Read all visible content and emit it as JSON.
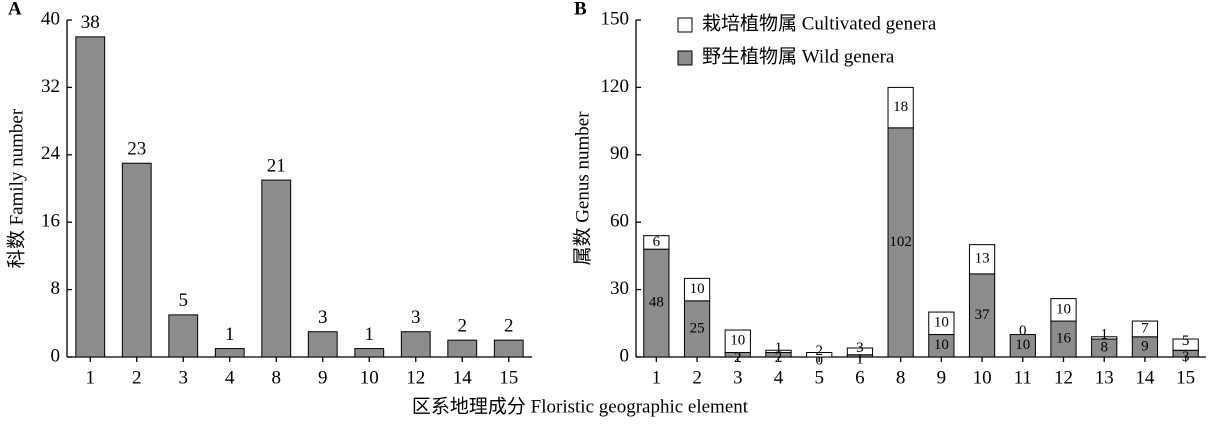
{
  "xlabel": "区系地理成分 Floristic geographic element",
  "chart_data": [
    {
      "type": "bar",
      "panel": "A",
      "ylabel": "科数 Family number",
      "categories": [
        "1",
        "2",
        "3",
        "4",
        "8",
        "9",
        "10",
        "12",
        "14",
        "15"
      ],
      "values": [
        38,
        23,
        5,
        1,
        21,
        3,
        1,
        3,
        2,
        2
      ],
      "color": "#8c8c8c",
      "ylim": [
        0,
        40
      ],
      "yticks": [
        0,
        8,
        16,
        24,
        32,
        40
      ]
    },
    {
      "type": "stacked_bar",
      "panel": "B",
      "ylabel": "属数 Genus number",
      "categories": [
        "1",
        "2",
        "3",
        "4",
        "5",
        "6",
        "8",
        "9",
        "10",
        "11",
        "12",
        "13",
        "14",
        "15"
      ],
      "series": [
        {
          "name": "野生植物属 Wild genera",
          "color": "#8c8c8c",
          "values": [
            48,
            25,
            2,
            2,
            0,
            1,
            102,
            10,
            37,
            10,
            16,
            8,
            9,
            3
          ]
        },
        {
          "name": "栽培植物属 Cultivated genera",
          "color": "#ffffff",
          "values": [
            6,
            10,
            10,
            1,
            2,
            3,
            18,
            10,
            13,
            0,
            10,
            1,
            7,
            5
          ]
        }
      ],
      "ylim": [
        0,
        150
      ],
      "yticks": [
        0,
        30,
        60,
        90,
        120,
        150
      ]
    }
  ]
}
